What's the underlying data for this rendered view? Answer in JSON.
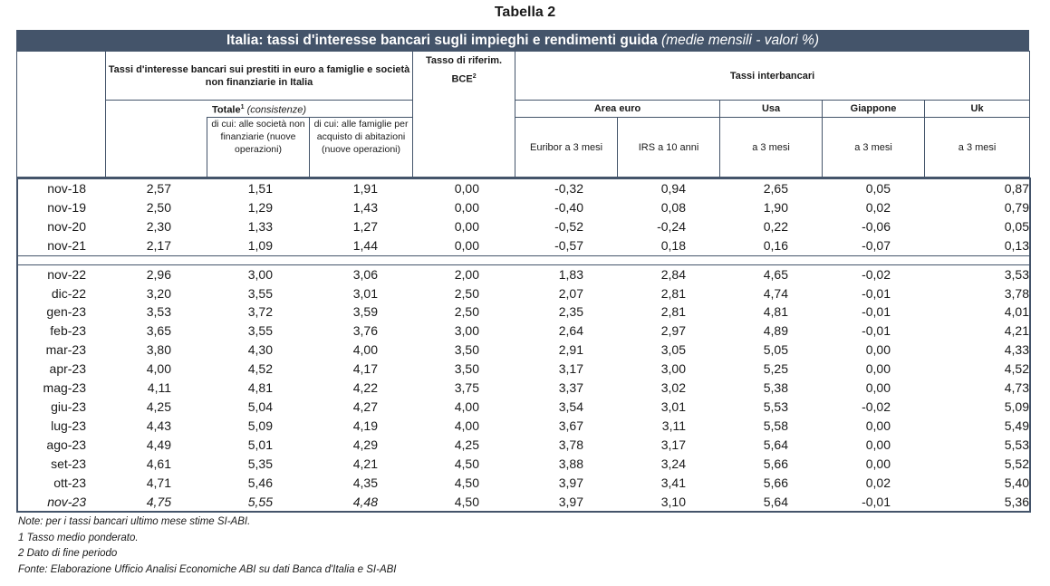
{
  "table_title": "Tabella 2",
  "banner": {
    "main": "Italia: tassi d'interesse bancari sugli impieghi e rendimenti guida",
    "sub": "(medie mensili - valori %)"
  },
  "headers": {
    "bank_rates_group": "Tassi d'interesse bancari sui prestiti in euro a famiglie e società non finanziarie in Italia",
    "totale": "Totale",
    "totale_sup": "1",
    "consistenze": "(consistenze)",
    "societa": "di cui: alle società non finanziarie (nuove operazioni)",
    "famiglie": "di cui: alle famiglie per acquisto di abitazioni (nuove operazioni)",
    "bce": "Tasso di riferim. BCE",
    "bce_sup": "2",
    "interbank_group": "Tassi interbancari",
    "area_euro": "Area euro",
    "usa": "Usa",
    "giappone": "Giappone",
    "uk": "Uk",
    "euribor": "Euribor a 3 mesi",
    "irs": "IRS a 10 anni",
    "usa_sub": "a 3 mesi",
    "giappone_sub": "a 3 mesi",
    "uk_sub": "a 3 mesi"
  },
  "rows_a": [
    [
      "nov-18",
      "2,57",
      "1,51",
      "1,91",
      "0,00",
      "-0,32",
      "0,94",
      "2,65",
      "0,05",
      "0,87"
    ],
    [
      "nov-19",
      "2,50",
      "1,29",
      "1,43",
      "0,00",
      "-0,40",
      "0,08",
      "1,90",
      "0,02",
      "0,79"
    ],
    [
      "nov-20",
      "2,30",
      "1,33",
      "1,27",
      "0,00",
      "-0,52",
      "-0,24",
      "0,22",
      "-0,06",
      "0,05"
    ],
    [
      "nov-21",
      "2,17",
      "1,09",
      "1,44",
      "0,00",
      "-0,57",
      "0,18",
      "0,16",
      "-0,07",
      "0,13"
    ]
  ],
  "rows_b": [
    [
      "nov-22",
      "2,96",
      "3,00",
      "3,06",
      "2,00",
      "1,83",
      "2,84",
      "4,65",
      "-0,02",
      "3,53"
    ],
    [
      "dic-22",
      "3,20",
      "3,55",
      "3,01",
      "2,50",
      "2,07",
      "2,81",
      "4,74",
      "-0,01",
      "3,78"
    ],
    [
      "gen-23",
      "3,53",
      "3,72",
      "3,59",
      "2,50",
      "2,35",
      "2,81",
      "4,81",
      "-0,01",
      "4,01"
    ],
    [
      "feb-23",
      "3,65",
      "3,55",
      "3,76",
      "3,00",
      "2,64",
      "2,97",
      "4,89",
      "-0,01",
      "4,21"
    ],
    [
      "mar-23",
      "3,80",
      "4,30",
      "4,00",
      "3,50",
      "2,91",
      "3,05",
      "5,05",
      "0,00",
      "4,33"
    ],
    [
      "apr-23",
      "4,00",
      "4,52",
      "4,17",
      "3,50",
      "3,17",
      "3,00",
      "5,25",
      "0,00",
      "4,52"
    ],
    [
      "mag-23",
      "4,11",
      "4,81",
      "4,22",
      "3,75",
      "3,37",
      "3,02",
      "5,38",
      "0,00",
      "4,73"
    ],
    [
      "giu-23",
      "4,25",
      "5,04",
      "4,27",
      "4,00",
      "3,54",
      "3,01",
      "5,53",
      "-0,02",
      "5,09"
    ],
    [
      "lug-23",
      "4,43",
      "5,09",
      "4,19",
      "4,00",
      "3,67",
      "3,11",
      "5,58",
      "0,00",
      "5,49"
    ],
    [
      "ago-23",
      "4,49",
      "5,01",
      "4,29",
      "4,25",
      "3,78",
      "3,17",
      "5,64",
      "0,00",
      "5,53"
    ],
    [
      "set-23",
      "4,61",
      "5,35",
      "4,21",
      "4,50",
      "3,88",
      "3,24",
      "5,66",
      "0,00",
      "5,52"
    ],
    [
      "ott-23",
      "4,71",
      "5,46",
      "4,35",
      "4,50",
      "3,97",
      "3,41",
      "5,66",
      "0,02",
      "5,40"
    ],
    [
      "nov-23",
      "4,75",
      "5,55",
      "4,48",
      "4,50",
      "3,97",
      "3,10",
      "5,64",
      "-0,01",
      "5,36"
    ]
  ],
  "notes": [
    "Note: per i tassi bancari ultimo mese stime SI-ABI.",
    "1 Tasso medio ponderato.",
    "2 Dato di fine periodo",
    "Fonte: Elaborazione Ufficio Analisi Economiche ABI su dati Banca d'Italia e SI-ABI"
  ]
}
